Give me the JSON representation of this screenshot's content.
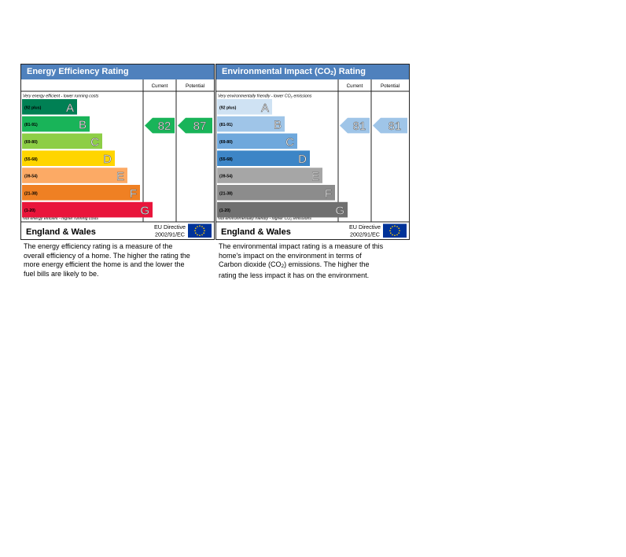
{
  "chart_data": [
    {
      "type": "table",
      "title": "Energy Efficiency Rating",
      "column_headers": {
        "current": "Current",
        "potential": "Potential"
      },
      "top_note": "Very energy efficient - lower running costs",
      "bottom_note": "Not energy efficient - higher running costs",
      "bands": [
        {
          "letter": "A",
          "range": "(92 plus)",
          "color": "#008054"
        },
        {
          "letter": "B",
          "range": "(81-91)",
          "color": "#19b459"
        },
        {
          "letter": "C",
          "range": "(69-80)",
          "color": "#8dce46"
        },
        {
          "letter": "D",
          "range": "(55-68)",
          "color": "#ffd500"
        },
        {
          "letter": "E",
          "range": "(39-54)",
          "color": "#fcaa65"
        },
        {
          "letter": "F",
          "range": "(21-38)",
          "color": "#ef8023"
        },
        {
          "letter": "G",
          "range": "(1-20)",
          "color": "#e9153b"
        }
      ],
      "current": {
        "value": 82,
        "band": "B",
        "color": "#19b459"
      },
      "potential": {
        "value": 87,
        "band": "B",
        "color": "#19b459"
      },
      "footer": {
        "region": "England & Wales",
        "directive_line1": "EU Directive",
        "directive_line2": "2002/91/EC"
      }
    },
    {
      "type": "table",
      "title": "Environmental Impact (CO",
      "title_sub": "2",
      "title_end": ") Rating",
      "column_headers": {
        "current": "Current",
        "potential": "Potential"
      },
      "top_note": "Very environmentally friendly - lower CO",
      "top_note_sub": "2",
      "top_note_end": " emissions",
      "bottom_note": "Not environmentally friendly - higher CO",
      "bottom_note_sub": "2",
      "bottom_note_end": " emissions",
      "bands": [
        {
          "letter": "A",
          "range": "(92 plus)",
          "color": "#cfe2f3"
        },
        {
          "letter": "B",
          "range": "(81-91)",
          "color": "#9fc5e8"
        },
        {
          "letter": "C",
          "range": "(69-80)",
          "color": "#6fa8dc"
        },
        {
          "letter": "D",
          "range": "(55-68)",
          "color": "#3d85c6"
        },
        {
          "letter": "E",
          "range": "(39-54)",
          "color": "#a6a6a6"
        },
        {
          "letter": "F",
          "range": "(21-38)",
          "color": "#8c8c8c"
        },
        {
          "letter": "G",
          "range": "(1-20)",
          "color": "#707070"
        }
      ],
      "current": {
        "value": 81,
        "band": "B",
        "color": "#9fc5e8"
      },
      "potential": {
        "value": 81,
        "band": "B",
        "color": "#9fc5e8"
      },
      "footer": {
        "region": "England & Wales",
        "directive_line1": "EU Directive",
        "directive_line2": "2002/91/EC"
      }
    }
  ],
  "captions": {
    "energy": [
      "The energy efficiency rating is a measure of the",
      "overall efficiency of a home. The higher the rating the",
      "more energy efficient the home is and the lower the",
      "fuel bills are likely to be."
    ],
    "environment_line1": "The environmental impact rating is a measure of this",
    "environment_line2": "home's impact on the environment in terms of",
    "environment_line3_start": "Carbon dioxide (CO",
    "environment_line3_sub": "2",
    "environment_line3_end": ") emissions. The higher the",
    "environment_line4": "rating the less impact it has on the environment."
  },
  "colors": {
    "title_bar": "#4f81bd",
    "eu_flag": "#003399",
    "eu_star": "#ffcc00"
  }
}
